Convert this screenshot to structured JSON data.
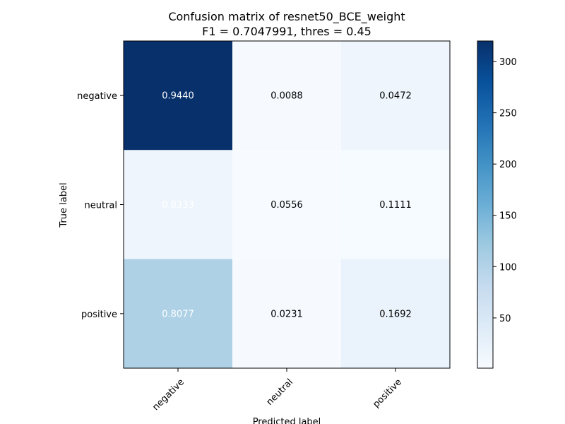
{
  "chart_data": {
    "type": "heatmap",
    "title": [
      "Confusion matrix of resnet50_BCE_weight",
      "F1 = 0.7047991, thres = 0.45"
    ],
    "xlabel": "Predicted label",
    "ylabel": "True label",
    "x_categories": [
      "negative",
      "neutral",
      "positive"
    ],
    "y_categories": [
      "negative",
      "neutral",
      "positive"
    ],
    "cell_labels": [
      [
        "0.9440",
        "0.0088",
        "0.0472"
      ],
      [
        "0.8333",
        "0.0556",
        "0.1111"
      ],
      [
        "0.8077",
        "0.0231",
        "0.1692"
      ]
    ],
    "color_values": [
      [
        320,
        3,
        16
      ],
      [
        15,
        1,
        2
      ],
      [
        105,
        3,
        22
      ]
    ],
    "colorbar": {
      "range": [
        1,
        320
      ],
      "ticks": [
        50,
        100,
        150,
        200,
        250,
        300
      ],
      "tick_labels": [
        "50",
        "100",
        "150",
        "200",
        "250",
        "300"
      ],
      "colormap": "Blues"
    }
  }
}
